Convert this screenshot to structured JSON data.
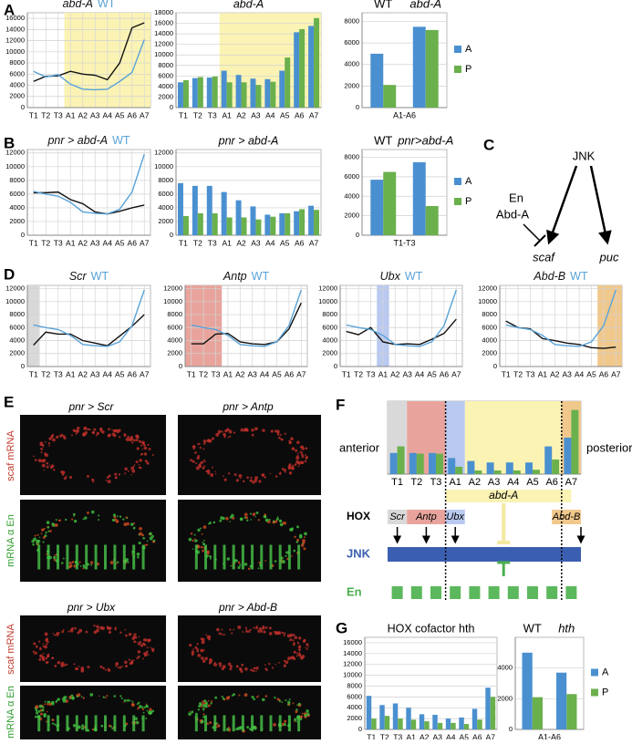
{
  "panels": [
    "A",
    "B",
    "C",
    "D",
    "E",
    "F",
    "G"
  ],
  "chart_data": [
    {
      "type": "line",
      "categories": [
        "T1",
        "T2",
        "T3",
        "A1",
        "A2",
        "A3",
        "A4",
        "A5",
        "A6",
        "A7"
      ],
      "ylim": [
        0,
        17000
      ],
      "yticks": [
        0,
        2000,
        4000,
        6000,
        8000,
        10000,
        12000,
        14000,
        16000
      ],
      "grid": true,
      "regions": [
        {
          "start": "A1",
          "end": "A7",
          "color": "#fbf3b4"
        }
      ],
      "series": [
        {
          "name": "abd-A",
          "color": "#111111",
          "italic": true,
          "values": [
            4700,
            5600,
            5700,
            6500,
            6000,
            5800,
            5000,
            8000,
            14300,
            15200
          ]
        },
        {
          "name": "WT",
          "color": "#5aa3d8",
          "values": [
            6500,
            5500,
            5900,
            4200,
            3300,
            3200,
            3300,
            4700,
            6300,
            12200
          ]
        }
      ]
    },
    {
      "type": "bar",
      "title": "abd-A",
      "title_style": "italic",
      "categories": [
        "T1",
        "T2",
        "T3",
        "A1",
        "A2",
        "A3",
        "A4",
        "A5",
        "A6",
        "A7"
      ],
      "ylim": [
        0,
        18000
      ],
      "yticks": [
        0,
        2000,
        4000,
        6000,
        8000,
        10000,
        12000,
        14000,
        16000,
        18000
      ],
      "grid": true,
      "regions": [
        {
          "start": "A1",
          "end": "A7",
          "color": "#fbf3b4"
        }
      ],
      "series": [
        {
          "color": "#4a90d0",
          "values": [
            4800,
            5600,
            5700,
            7000,
            6200,
            5500,
            5400,
            7000,
            14300,
            15500
          ]
        },
        {
          "color": "#6ab04c",
          "values": [
            5200,
            5800,
            5900,
            4800,
            4800,
            4300,
            4900,
            9500,
            14900,
            17000
          ]
        }
      ]
    },
    {
      "type": "bar",
      "categories": [
        "WT",
        "abd-A"
      ],
      "category_labels": "top",
      "xlabel": "A1-A6",
      "ylim": [
        0,
        8800
      ],
      "yticks": [
        0,
        2000,
        4000,
        6000,
        8000
      ],
      "grid": true,
      "legend": "right",
      "series": [
        {
          "name": "A",
          "color": "#4a90d0",
          "values": [
            5000,
            7500
          ]
        },
        {
          "name": "P",
          "color": "#6ab04c",
          "values": [
            2100,
            7200
          ]
        }
      ]
    },
    {
      "type": "line",
      "categories": [
        "T1",
        "T2",
        "T3",
        "A1",
        "A2",
        "A3",
        "A4",
        "A5",
        "A6",
        "A7"
      ],
      "ylim": [
        0,
        12500
      ],
      "yticks": [
        0,
        2000,
        4000,
        6000,
        8000,
        10000,
        12000
      ],
      "grid": true,
      "series": [
        {
          "name": "pnr > abd-A",
          "color": "#111111",
          "italic": true,
          "values": [
            6200,
            6200,
            6300,
            5200,
            4600,
            3400,
            3100,
            3500,
            4000,
            4400
          ]
        },
        {
          "name": "WT",
          "color": "#5aa3d8",
          "values": [
            6400,
            6000,
            5700,
            4800,
            3400,
            3200,
            3100,
            3800,
            6300,
            11800
          ]
        }
      ]
    },
    {
      "type": "bar",
      "title": "pnr > abd-A",
      "title_style": "italic",
      "categories": [
        "T1",
        "T2",
        "T3",
        "A1",
        "A2",
        "A3",
        "A4",
        "A5",
        "A6",
        "A7"
      ],
      "ylim": [
        0,
        12500
      ],
      "yticks": [
        0,
        2000,
        4000,
        6000,
        8000,
        10000,
        12000
      ],
      "grid": true,
      "series": [
        {
          "color": "#4a90d0",
          "values": [
            7600,
            7200,
            7200,
            6300,
            5100,
            4200,
            3000,
            3200,
            3500,
            4300
          ]
        },
        {
          "color": "#6ab04c",
          "values": [
            2800,
            3200,
            3200,
            2600,
            2600,
            2300,
            2700,
            3200,
            3800,
            3700
          ]
        }
      ]
    },
    {
      "type": "bar",
      "categories": [
        "WT",
        "pnr>abd-A"
      ],
      "category_labels": "top",
      "xlabel": "T1-T3",
      "ylim": [
        0,
        8800
      ],
      "yticks": [
        0,
        2000,
        4000,
        6000,
        8000
      ],
      "grid": true,
      "legend": "right",
      "series": [
        {
          "name": "A",
          "color": "#4a90d0",
          "values": [
            5700,
            7500
          ]
        },
        {
          "name": "P",
          "color": "#6ab04c",
          "values": [
            6500,
            3000
          ]
        }
      ]
    },
    {
      "type": "line",
      "categories": [
        "T1",
        "T2",
        "T3",
        "A1",
        "A2",
        "A3",
        "A4",
        "A5",
        "A6",
        "A7"
      ],
      "ylim": [
        0,
        12500
      ],
      "yticks": [
        0,
        2000,
        4000,
        6000,
        8000,
        10000,
        12000
      ],
      "grid": true,
      "regions": [
        {
          "start": "T1",
          "end": "T1",
          "color": "#d9d9d9"
        }
      ],
      "series": [
        {
          "name": "Scr",
          "color": "#111111",
          "italic": true,
          "values": [
            3300,
            5300,
            5000,
            5000,
            4000,
            3600,
            3200,
            4700,
            6200,
            8000
          ]
        },
        {
          "name": "WT",
          "color": "#5aa3d8",
          "values": [
            6400,
            6000,
            5700,
            4800,
            3400,
            3200,
            3100,
            3800,
            6300,
            11800
          ]
        }
      ]
    },
    {
      "type": "line",
      "categories": [
        "T1",
        "T2",
        "T3",
        "A1",
        "A2",
        "A3",
        "A4",
        "A5",
        "A6",
        "A7"
      ],
      "ylim": [
        0,
        12500
      ],
      "yticks": [
        0,
        2000,
        4000,
        6000,
        8000,
        10000,
        12000
      ],
      "grid": true,
      "regions": [
        {
          "start": "T1",
          "end": "T3",
          "color": "#e8a49c"
        }
      ],
      "series": [
        {
          "name": "Antp",
          "color": "#111111",
          "italic": true,
          "values": [
            3500,
            3500,
            5000,
            5100,
            3800,
            3500,
            3400,
            3800,
            5800,
            9800
          ]
        },
        {
          "name": "WT",
          "color": "#5aa3d8",
          "values": [
            6400,
            6000,
            5700,
            4800,
            3400,
            3200,
            3100,
            3800,
            6300,
            11800
          ]
        }
      ]
    },
    {
      "type": "line",
      "categories": [
        "T1",
        "T2",
        "T3",
        "A1",
        "A2",
        "A3",
        "A4",
        "A5",
        "A6",
        "A7"
      ],
      "ylim": [
        0,
        12500
      ],
      "yticks": [
        0,
        2000,
        4000,
        6000,
        8000,
        10000,
        12000
      ],
      "grid": true,
      "regions": [
        {
          "start": "A1",
          "end": "A1",
          "color": "#b9c9f0"
        }
      ],
      "series": [
        {
          "name": "Ubx",
          "color": "#111111",
          "italic": true,
          "values": [
            5400,
            4900,
            6000,
            3800,
            3400,
            3500,
            3400,
            4200,
            5100,
            7300
          ]
        },
        {
          "name": "WT",
          "color": "#5aa3d8",
          "values": [
            6400,
            6000,
            5700,
            4800,
            3400,
            3200,
            3100,
            3800,
            6300,
            11800
          ]
        }
      ]
    },
    {
      "type": "line",
      "categories": [
        "T1",
        "T2",
        "T3",
        "A1",
        "A2",
        "A3",
        "A4",
        "A5",
        "A6",
        "A7"
      ],
      "ylim": [
        0,
        12500
      ],
      "yticks": [
        0,
        2000,
        4000,
        6000,
        8000,
        10000,
        12000
      ],
      "grid": true,
      "regions": [
        {
          "start": "A6",
          "end": "A7",
          "color": "#f0c88c"
        }
      ],
      "series": [
        {
          "name": "Abd-B",
          "color": "#111111",
          "italic": true,
          "values": [
            7000,
            6000,
            5800,
            4300,
            4000,
            3600,
            3400,
            2900,
            2800,
            3000
          ]
        },
        {
          "name": "WT",
          "color": "#5aa3d8",
          "values": [
            6400,
            6000,
            5700,
            4800,
            3400,
            3200,
            3100,
            3800,
            6300,
            11800
          ]
        }
      ]
    },
    {
      "type": "bar",
      "categories": [
        "T1",
        "T2",
        "T3",
        "A1",
        "A2",
        "A3",
        "A4",
        "A5",
        "A6",
        "A7"
      ],
      "ylim": [
        0,
        10000
      ],
      "grid": false,
      "regions": [
        {
          "start": "T1",
          "end": "T1",
          "color": "#d9d9d9"
        },
        {
          "start": "T2",
          "end": "T3",
          "color": "#e8a49c"
        },
        {
          "start": "A1",
          "end": "A1",
          "color": "#b9c9f0"
        },
        {
          "start": "A2",
          "end": "A6",
          "color": "#fbf3b4"
        },
        {
          "start": "A7",
          "end": "A7",
          "color": "#f0c88c"
        }
      ],
      "series": [
        {
          "color": "#4a90d0",
          "values": [
            2900,
            2900,
            2900,
            2200,
            1800,
            1600,
            1600,
            1600,
            3800,
            5000
          ]
        },
        {
          "color": "#6ab04c",
          "values": [
            3800,
            2800,
            2800,
            1000,
            500,
            500,
            500,
            600,
            2000,
            8800
          ]
        }
      ]
    },
    {
      "type": "bar",
      "title": "HOX cofactor hth",
      "categories": [
        "T1",
        "T2",
        "T3",
        "A1",
        "A2",
        "A3",
        "A4",
        "A5",
        "A6",
        "A7"
      ],
      "ylim": [
        0,
        17000
      ],
      "yticks": [
        0,
        2000,
        4000,
        6000,
        8000,
        10000,
        12000,
        14000,
        16000
      ],
      "grid": true,
      "series": [
        {
          "color": "#4a90d0",
          "values": [
            6200,
            4500,
            4800,
            4000,
            2800,
            2700,
            2000,
            2200,
            3800,
            7700
          ]
        },
        {
          "color": "#6ab04c",
          "values": [
            2000,
            2500,
            2000,
            1800,
            1500,
            1200,
            1200,
            1000,
            1800,
            6000
          ]
        }
      ]
    },
    {
      "type": "bar",
      "categories": [
        "WT",
        "hth"
      ],
      "category_labels": "top",
      "xlabel": "A1-A6",
      "ylim": [
        0,
        6000
      ],
      "yticks": [
        0,
        2000,
        4000
      ],
      "grid": true,
      "legend": "right",
      "series": [
        {
          "name": "A",
          "color": "#4a90d0",
          "values": [
            5000,
            3700
          ]
        },
        {
          "name": "P",
          "color": "#6ab04c",
          "values": [
            2100,
            2300
          ]
        }
      ]
    }
  ],
  "diagram_c": {
    "jnk": "JNK",
    "en": "En",
    "abda": "Abd-A",
    "scaf": "scaf",
    "puc": "puc"
  },
  "panel_e": {
    "titles": [
      "pnr > Scr",
      "pnr > Antp",
      "pnr > Ubx",
      "pnr > Abd-B"
    ],
    "side_labels": [
      "scaf mRNA",
      "mRNA α En",
      "scaf mRNA",
      "mRNA α En"
    ]
  },
  "panel_f": {
    "anterior": "anterior",
    "posterior": "posterior",
    "hox": "HOX",
    "jnk": "JNK",
    "en": "En",
    "genes": [
      "Scr",
      "Antp",
      "Ubx",
      "abd-A",
      "Abd-B"
    ]
  }
}
